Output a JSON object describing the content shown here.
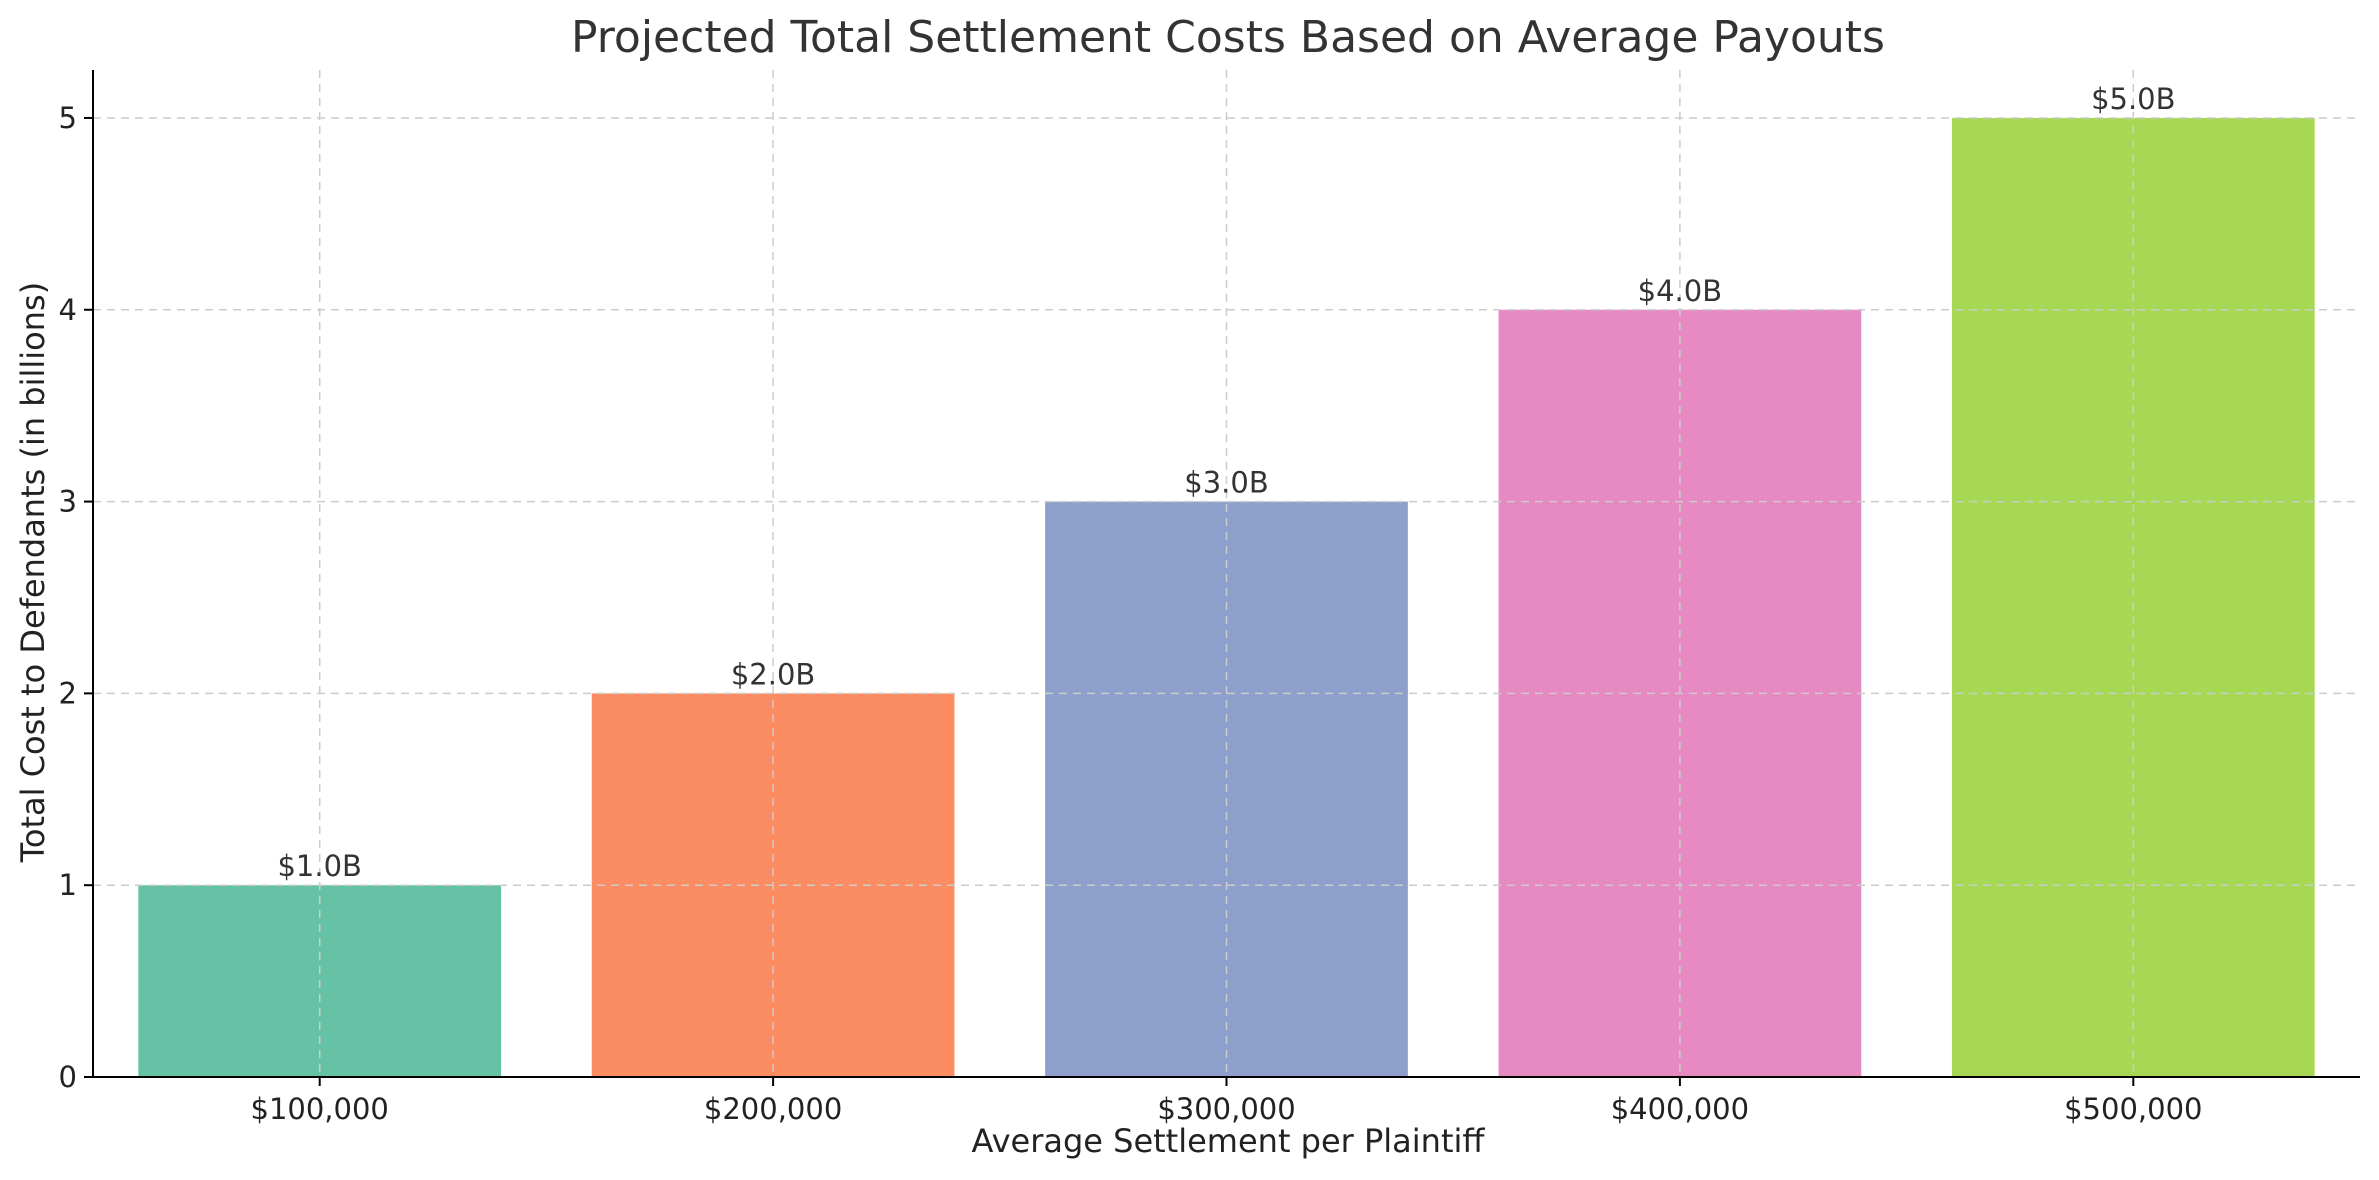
{
  "chart_data": {
    "type": "bar",
    "title": "Projected Total Settlement Costs Based on Average Payouts",
    "xlabel": "Average Settlement per Plaintiff",
    "ylabel": "Total Cost to Defendants (in billions)",
    "categories": [
      "$100,000",
      "$200,000",
      "$300,000",
      "$400,000",
      "$500,000"
    ],
    "values": [
      1.0,
      2.0,
      3.0,
      4.0,
      5.0
    ],
    "data_labels": [
      "$1.0B",
      "$2.0B",
      "$3.0B",
      "$4.0B",
      "$5.0B"
    ],
    "colors": [
      "#66c2a5",
      "#fc8d62",
      "#8da0cb",
      "#e78ac3",
      "#a6d854"
    ],
    "ylim": [
      0,
      5.25
    ],
    "yticks": [
      0,
      1,
      2,
      3,
      4,
      5
    ],
    "grid": true,
    "legend": "none"
  }
}
